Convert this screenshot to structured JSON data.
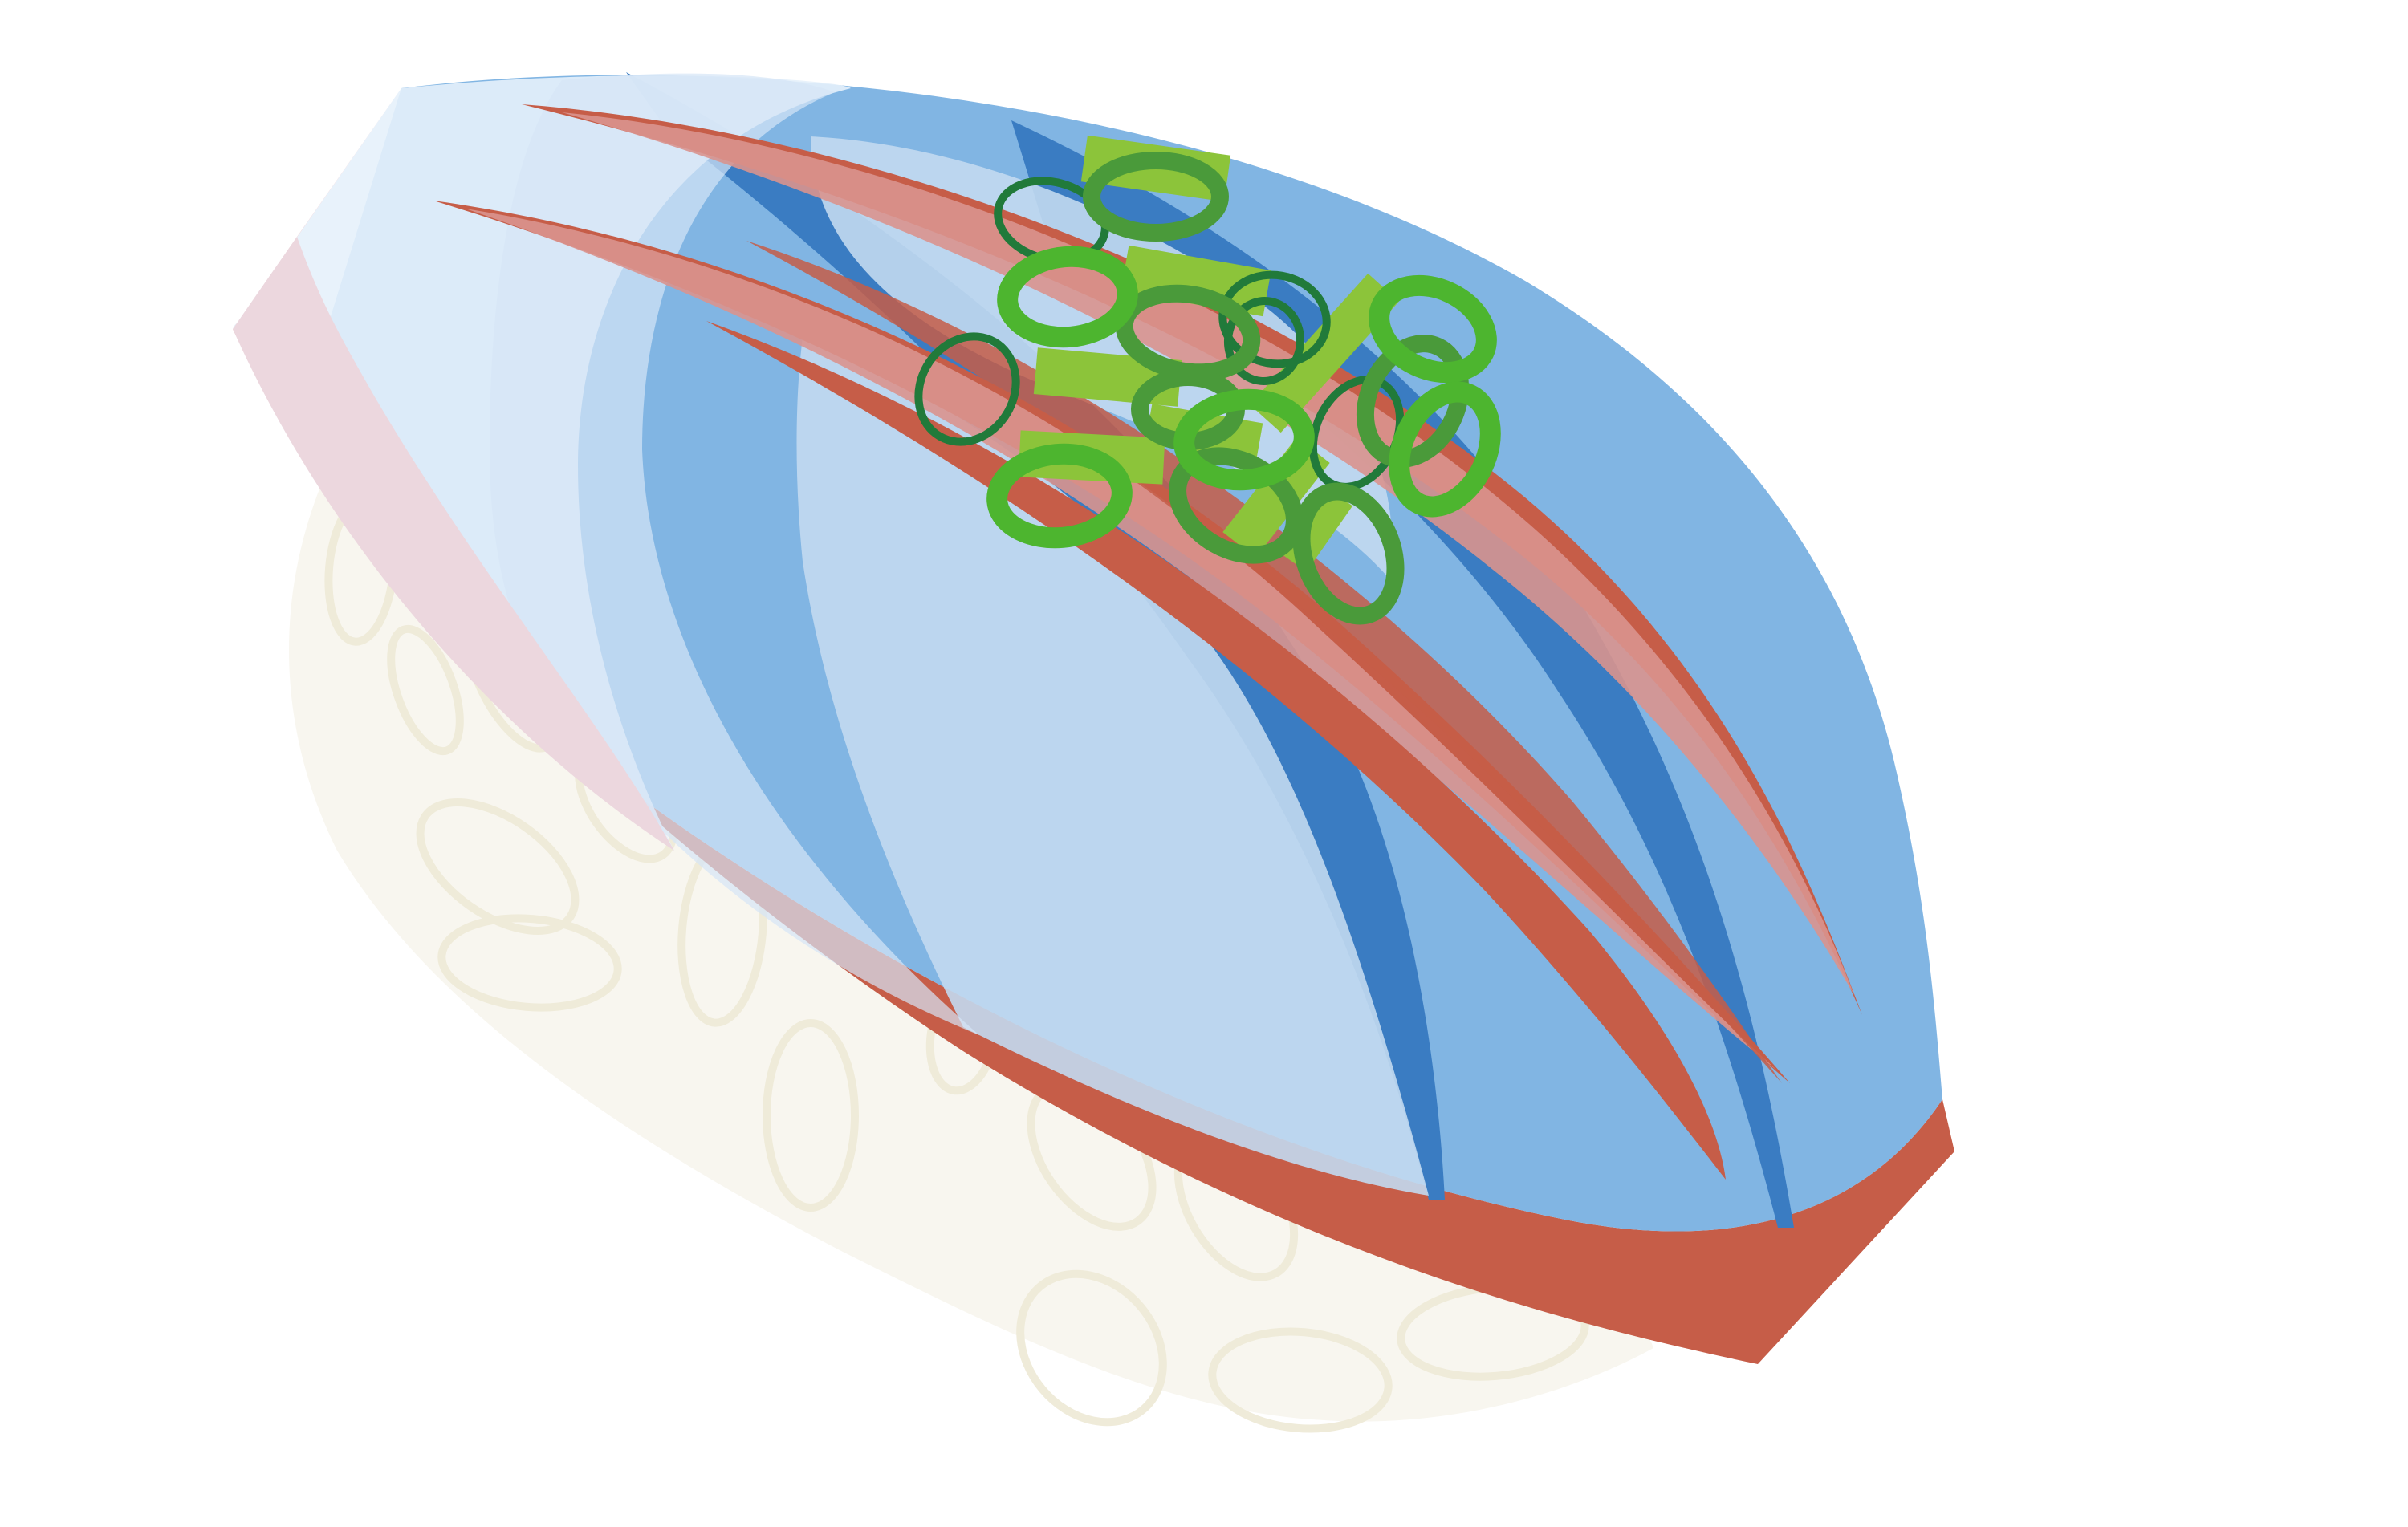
{
  "scene": {
    "subject": "nigiri-sushi",
    "colors": {
      "background": "#ffffff",
      "rice": "#f8f6ef",
      "rice_grain_outline": "#efebd9",
      "fish_light_blue": "#81b5e3",
      "fish_pale_blue": "#c2d9f0",
      "fish_glaze": "#e6f1fb",
      "fish_dark_blue": "#3a7cc2",
      "fish_red": "#c65d48",
      "fish_pink": "#d9948e",
      "fish_blush": "#ecd7de",
      "scallion_dark": "#217a3a",
      "scallion_mid": "#4a9a3a",
      "scallion_bright": "#4db52f",
      "scallion_light": "#8cc43a"
    },
    "icons": [
      "rice-ball",
      "fish-topping",
      "scallion-garnish"
    ]
  }
}
